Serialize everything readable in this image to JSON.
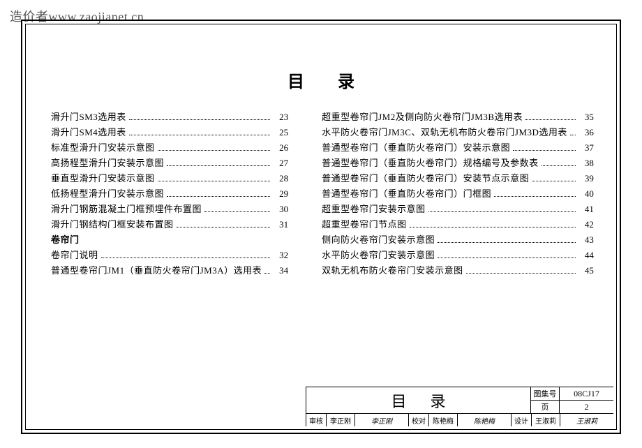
{
  "watermark": "造价者www.zaojianet.cn",
  "title": "目录",
  "left": [
    {
      "label": "滑升门SM3选用表",
      "page": "23"
    },
    {
      "label": "滑升门SM4选用表",
      "page": "25"
    },
    {
      "label": "标准型滑升门安装示意图",
      "page": "26"
    },
    {
      "label": "高扬程型滑升门安装示意图",
      "page": "27"
    },
    {
      "label": "垂直型滑升门安装示意图",
      "page": "28"
    },
    {
      "label": "低扬程型滑升门安装示意图",
      "page": "29"
    },
    {
      "label": "滑升门钢筋混凝土门框预埋件布置图",
      "page": "30"
    },
    {
      "label": "滑升门钢结构门框安装布置图",
      "page": "31"
    },
    {
      "label": "卷帘门",
      "page": "",
      "heading": true
    },
    {
      "label": "卷帘门说明",
      "page": "32"
    },
    {
      "label": "普通型卷帘门JM1（垂直防火卷帘门JM3A）选用表",
      "page": "34"
    }
  ],
  "right": [
    {
      "label": "超重型卷帘门JM2及侧向防火卷帘门JM3B选用表",
      "page": "35"
    },
    {
      "label": "水平防火卷帘门JM3C、双轨无机布防火卷帘门JM3D选用表",
      "page": "36"
    },
    {
      "label": "普通型卷帘门（垂直防火卷帘门）安装示意图",
      "page": "37"
    },
    {
      "label": "普通型卷帘门（垂直防火卷帘门）规格编号及参数表",
      "page": "38"
    },
    {
      "label": "普通型卷帘门（垂直防火卷帘门）安装节点示意图",
      "page": "39"
    },
    {
      "label": "普通型卷帘门（垂直防火卷帘门）门框图",
      "page": "40"
    },
    {
      "label": "超重型卷帘门安装示意图",
      "page": "41"
    },
    {
      "label": "超重型卷帘门节点图",
      "page": "42"
    },
    {
      "label": "侧向防火卷帘门安装示意图",
      "page": "43"
    },
    {
      "label": "水平防火卷帘门安装示意图",
      "page": "44"
    },
    {
      "label": "双轨无机布防火卷帘门安装示意图",
      "page": "45"
    }
  ],
  "titleblock": {
    "title": "目录",
    "code_label": "图集号",
    "code": "08CJ17",
    "page_label": "页",
    "page": "2",
    "roles": [
      {
        "role": "审核",
        "name": "李正刚",
        "sig": "李正刚"
      },
      {
        "role": "校对",
        "name": "陈艳梅",
        "sig": "陈艳梅"
      },
      {
        "role": "设计",
        "name": "王淑莉",
        "sig": "王淑莉"
      }
    ]
  }
}
